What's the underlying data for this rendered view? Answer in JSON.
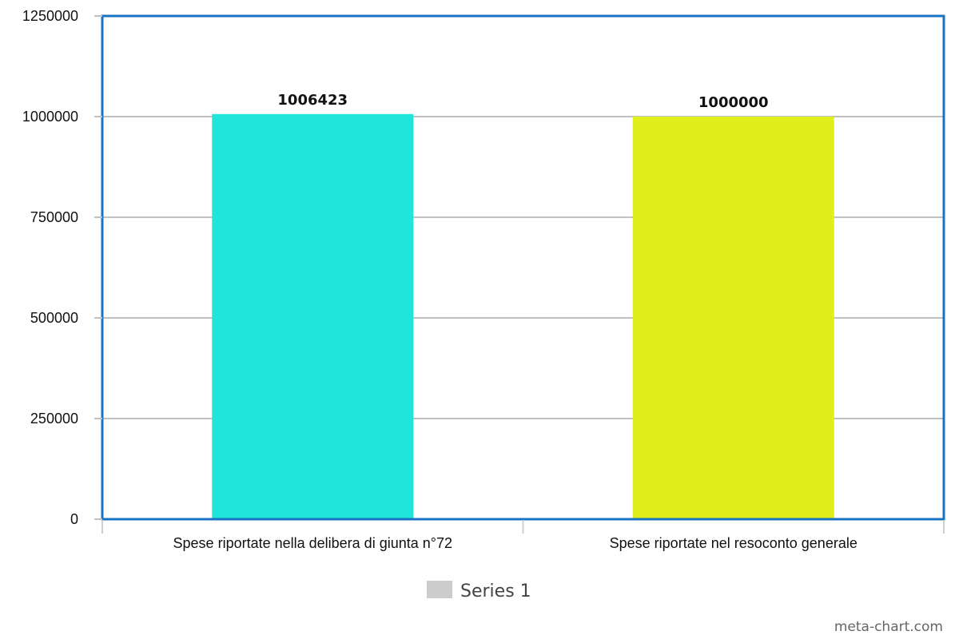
{
  "chart_data": {
    "type": "bar",
    "categories": [
      "Spese riportate nella delibera di giunta n°72",
      "Spese riportate nel resoconto generale"
    ],
    "series": [
      {
        "name": "Series 1",
        "values": [
          1006423,
          1000000
        ],
        "data_labels": [
          "1006423",
          "1000000"
        ],
        "colors": [
          "#1fe5db",
          "#e0ee1b"
        ],
        "legend_color": "#cccccc"
      }
    ],
    "yticks": [
      0,
      250000,
      500000,
      750000,
      1000000,
      1250000
    ],
    "ytick_labels": [
      "0",
      "250000",
      "500000",
      "750000",
      "1000000",
      "1250000"
    ],
    "ylim": [
      0,
      1250000
    ],
    "grid": true,
    "legend": "bottom-center",
    "frame_color": "#1a73c0",
    "watermark": "meta-chart.com"
  }
}
